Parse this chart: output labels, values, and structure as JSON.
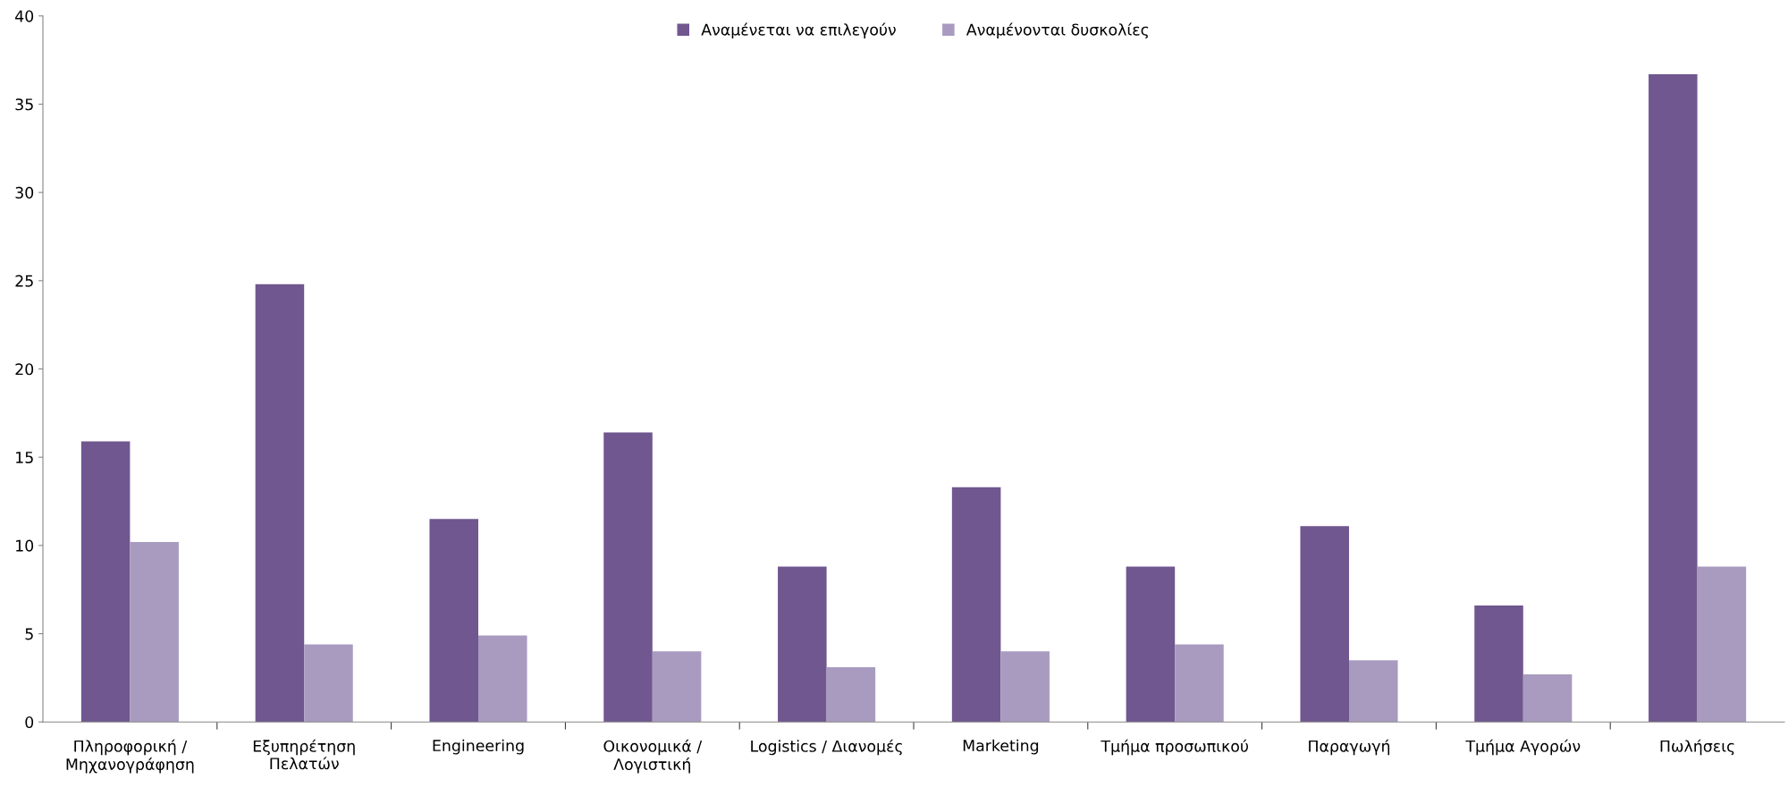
{
  "chart_data": {
    "type": "bar",
    "categories": [
      "Πληροφορική /\nΜηχανογράφηση",
      "Εξυπηρέτηση\nΠελατών",
      "Engineering",
      "Οικονομικά /\nΛογιστική",
      "Logistics / Διανομές",
      "Marketing",
      "Τμήμα προσωπικού",
      "Παραγωγή",
      "Τμήμα Αγορών",
      "Πωλήσεις"
    ],
    "series": [
      {
        "name": "Αναμένεται να επιλεγούν",
        "color": "#70578f",
        "values": [
          15.9,
          24.8,
          11.5,
          16.4,
          8.8,
          13.3,
          8.8,
          11.1,
          6.6,
          36.7
        ]
      },
      {
        "name": "Αναμένονται δυσκολίες",
        "color": "#a99bbf",
        "values": [
          10.2,
          4.4,
          4.9,
          4.0,
          3.1,
          4.0,
          4.4,
          3.5,
          2.7,
          8.8
        ]
      }
    ],
    "ylim": [
      0,
      40
    ],
    "yticks": [
      0,
      5,
      10,
      15,
      20,
      25,
      30,
      35,
      40
    ],
    "grid": false,
    "legend": "top"
  }
}
